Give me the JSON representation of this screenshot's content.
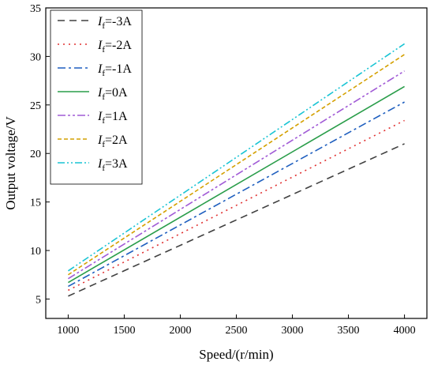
{
  "chart_data": {
    "type": "line",
    "xlabel": "Speed/(r/min)",
    "ylabel": "Output voltage/V",
    "xlim": [
      800,
      4200
    ],
    "ylim": [
      3,
      35
    ],
    "x_ticks": [
      1000,
      1500,
      2000,
      2500,
      3000,
      3500,
      4000
    ],
    "y_ticks": [
      5,
      10,
      15,
      20,
      25,
      30,
      35
    ],
    "grid": false,
    "legend_position": "top-left",
    "x": [
      1000,
      4000
    ],
    "series": [
      {
        "name": "I_f=-3A",
        "legend_main": "I",
        "legend_sub": "f",
        "legend_rest": "=-3A",
        "values": [
          5.3,
          21.0
        ],
        "color": "#404040",
        "dash": "9,6"
      },
      {
        "name": "I_f=-2A",
        "legend_main": "I",
        "legend_sub": "f",
        "legend_rest": "=-2A",
        "values": [
          5.9,
          23.4
        ],
        "color": "#e03030",
        "dash": "2,5"
      },
      {
        "name": "I_f=-1A",
        "legend_main": "I",
        "legend_sub": "f",
        "legend_rest": "=-1A",
        "values": [
          6.3,
          25.3
        ],
        "color": "#1f5fbf",
        "dash": "10,4,3,4"
      },
      {
        "name": "I_f=0A",
        "legend_main": "I",
        "legend_sub": "f",
        "legend_rest": "=0A",
        "values": [
          6.7,
          26.9
        ],
        "color": "#2a9d4a",
        "dash": ""
      },
      {
        "name": "I_f=1A",
        "legend_main": "I",
        "legend_sub": "f",
        "legend_rest": "=1A",
        "values": [
          7.1,
          28.5
        ],
        "color": "#a15bd6",
        "dash": "10,3,3,3,3,3"
      },
      {
        "name": "I_f=2A",
        "legend_main": "I",
        "legend_sub": "f",
        "legend_rest": "=2A",
        "values": [
          7.5,
          30.2
        ],
        "color": "#d4a000",
        "dash": "5,3"
      },
      {
        "name": "I_f=3A",
        "legend_main": "I",
        "legend_sub": "f",
        "legend_rest": "=3A",
        "values": [
          7.9,
          31.3
        ],
        "color": "#19c4d4",
        "dash": "9,3,2,3,2,3"
      }
    ]
  }
}
